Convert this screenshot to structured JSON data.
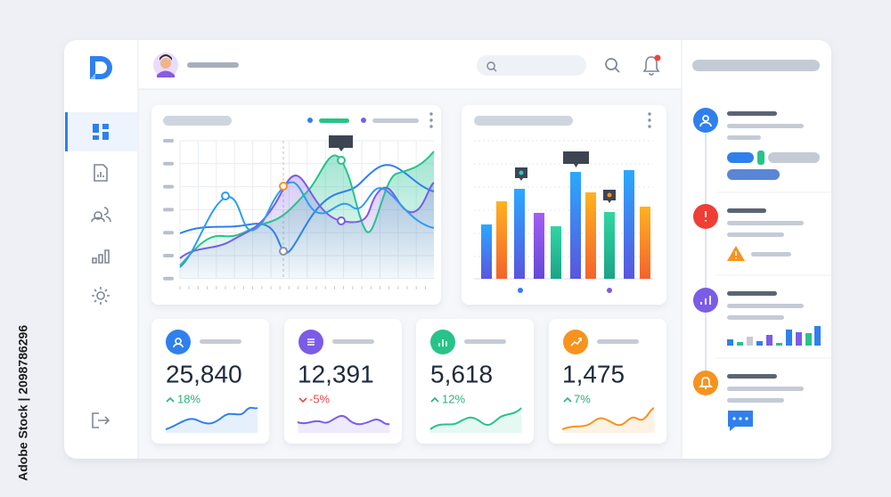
{
  "stats": [
    {
      "value": "25,840",
      "change": "18%"
    },
    {
      "value": "12,391",
      "change": "-5%"
    },
    {
      "value": "5,618",
      "change": "12%"
    },
    {
      "value": "1,475",
      "change": "7%"
    }
  ],
  "side_label": "Adobe Stock | 2098786296"
}
